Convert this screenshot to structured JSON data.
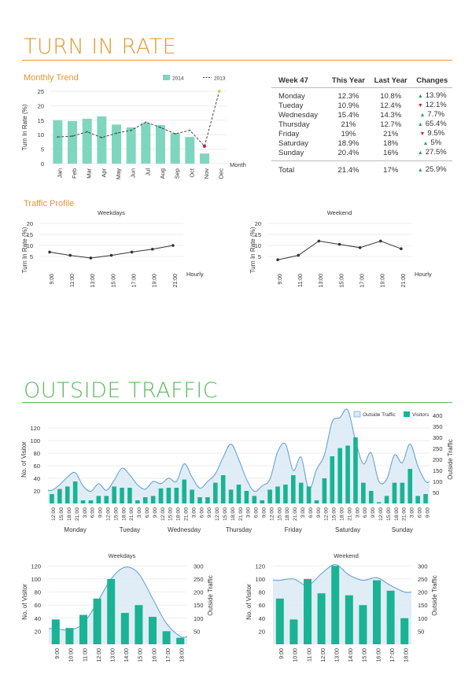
{
  "sections": {
    "turn_in_rate": "TURN IN RATE",
    "outside_traffic": "OUTSIDE TRAFFIC"
  },
  "subtitles": {
    "monthly_trend": "Monthly Trend",
    "traffic_profile": "Traffic Profile"
  },
  "colors": {
    "orange": "#e8962f",
    "green": "#5cb85c",
    "teal_bar": "#7fd6bf",
    "dark_teal": "#1ab394",
    "line_blue": "#5b9bd5",
    "area_fill": "#daeaf6",
    "up": "#2e9e5e",
    "down": "#c62828"
  },
  "table": {
    "headers": [
      "Week 47",
      "This Year",
      "Last Year",
      "Changes"
    ],
    "rows": [
      {
        "day": "Monday",
        "this": "12.3%",
        "last": "10.8%",
        "dir": "up",
        "change": "13.9%"
      },
      {
        "day": "Tueday",
        "this": "10.9%",
        "last": "12.4%",
        "dir": "down",
        "change": "12.1%"
      },
      {
        "day": "Wednesday",
        "this": "15.4%",
        "last": "14.3%",
        "dir": "up",
        "change": "7.7%"
      },
      {
        "day": "Thursday",
        "this": "21%",
        "last": "12.7%",
        "dir": "up",
        "change": "65.4%"
      },
      {
        "day": "Friday",
        "this": "19%",
        "last": "21%",
        "dir": "down",
        "change": "9.5%"
      },
      {
        "day": "Saturday",
        "this": "18.9%",
        "last": "18%",
        "dir": "up",
        "change": "5%"
      },
      {
        "day": "Sunday",
        "this": "20.4%",
        "last": "16%",
        "dir": "up",
        "change": "27.5%"
      }
    ],
    "total": {
      "day": "Total",
      "this": "21.4%",
      "last": "17%",
      "dir": "up",
      "change": "25.9%"
    }
  },
  "chart_data": [
    {
      "id": "monthly",
      "type": "bar",
      "categories": [
        "Jan",
        "Feb",
        "Mar",
        "Apr",
        "May",
        "Jun",
        "Jul",
        "Aug",
        "Sep",
        "Oct",
        "Nov",
        "Dec"
      ],
      "series": [
        {
          "name": "2014",
          "kind": "bar",
          "values": [
            15,
            14.7,
            15.5,
            16.3,
            13.5,
            12.5,
            14,
            13.3,
            10.5,
            9.2,
            3.5,
            null
          ]
        },
        {
          "name": "2013",
          "kind": "line",
          "values": [
            9.2,
            9.5,
            11,
            9,
            10.5,
            11.5,
            14.3,
            12.5,
            10.3,
            11.5,
            6,
            25
          ]
        }
      ],
      "ylim": [
        0,
        25
      ],
      "yticks": [
        0,
        5,
        10,
        15,
        20,
        25
      ],
      "ylabel": "Turn In Rate (%)",
      "xlabel": "Month"
    },
    {
      "id": "weekdays_rate",
      "type": "line",
      "title": "Weekdays",
      "categories": [
        "9:00",
        "11:00",
        "13:00",
        "15:00",
        "17:00",
        "19:00",
        "21:00"
      ],
      "values": [
        7,
        5.5,
        4.3,
        5.5,
        7,
        8.3,
        10
      ],
      "ylim": [
        0,
        20
      ],
      "yticks": [
        5,
        10,
        15,
        20
      ],
      "ylabel": "Turn In Rate (%)",
      "xlabel": "Hourly"
    },
    {
      "id": "weekend_rate",
      "type": "line",
      "title": "Weekend",
      "categories": [
        "9:00",
        "11:00",
        "13:00",
        "15:00",
        "17:00",
        "19:00",
        "21:00"
      ],
      "values": [
        3.5,
        5.5,
        12,
        10.5,
        9,
        12,
        8.5
      ],
      "ylim": [
        0,
        20
      ],
      "yticks": [
        5,
        10,
        15,
        20
      ],
      "ylabel": "Turn In Rate (%)",
      "xlabel": "Hourly"
    },
    {
      "id": "weekly_traffic",
      "type": "bar",
      "groups": [
        "Monday",
        "Tueday",
        "Wednesday",
        "Thursday",
        "Friday",
        "Saturday",
        "Sunday"
      ],
      "group_ticks": [
        "12:00",
        "15:00",
        "18:00",
        "21:00",
        "3:00",
        "6:00",
        "9:00"
      ],
      "series": [
        {
          "name": "Visitors",
          "kind": "bar",
          "axis": "left",
          "values": [
            [
              15,
              23,
              27,
              35,
              5,
              5,
              12
            ],
            [
              12,
              27,
              25,
              25,
              5,
              10,
              12
            ],
            [
              24,
              25,
              25,
              38,
              22,
              10,
              10
            ],
            [
              33,
              45,
              22,
              30,
              20,
              12,
              5
            ],
            [
              22,
              27,
              30,
              45,
              33,
              27,
              5
            ],
            [
              40,
              75,
              88,
              92,
              105,
              33,
              20
            ],
            [
              2,
              12,
              33,
              33,
              55,
              12,
              15
            ]
          ]
        },
        {
          "name": "Outside Traffic",
          "kind": "area",
          "axis": "right",
          "values": [
            [
              60,
              85,
              120,
              140,
              80,
              55,
              90
            ],
            [
              60,
              105,
              160,
              130,
              85,
              65,
              100
            ],
            [
              90,
              115,
              100,
              180,
              120,
              70,
              100
            ],
            [
              135,
              210,
              270,
              200,
              110,
              55,
              80
            ],
            [
              110,
              235,
              270,
              150,
              210,
              65,
              155
            ],
            [
              220,
              370,
              390,
              425,
              285,
              180,
              230
            ],
            [
              100,
              110,
              220,
              185,
              270,
              170,
              100
            ]
          ]
        }
      ],
      "ylim_left": [
        0,
        140
      ],
      "yticks_left": [
        20,
        40,
        60,
        80,
        100,
        120
      ],
      "ylim_right": [
        0,
        400
      ],
      "yticks_right": [
        50,
        100,
        150,
        200,
        250,
        300,
        350,
        400
      ],
      "ylabel_left": "No. of Visitor",
      "ylabel_right": "Outside Traffic"
    },
    {
      "id": "weekdays_traffic",
      "type": "bar",
      "title": "Weekdays",
      "categories": [
        "9:00",
        "10:00",
        "11:00",
        "12:00",
        "13:00",
        "14:00",
        "15:00",
        "16:00",
        "17:00",
        "18:00"
      ],
      "series": [
        {
          "name": "Visitors",
          "kind": "bar",
          "axis": "left",
          "values": [
            38,
            25,
            45,
            70,
            100,
            48,
            60,
            42,
            20,
            10
          ]
        },
        {
          "name": "Outside Traffic",
          "kind": "area",
          "axis": "right",
          "values": [
            60,
            55,
            80,
            160,
            250,
            295,
            270,
            175,
            80,
            30
          ]
        }
      ],
      "ylim_left": [
        0,
        130
      ],
      "yticks_left": [
        20,
        40,
        60,
        80,
        100,
        120
      ],
      "ylim_right": [
        0,
        325
      ],
      "yticks_right": [
        50,
        100,
        150,
        200,
        250,
        300
      ],
      "ylabel_left": "No. of Visitor",
      "ylabel_right": "Outside Traffic"
    },
    {
      "id": "weekend_traffic",
      "type": "bar",
      "title": "Weekend",
      "categories": [
        "9:00",
        "10:00",
        "11:00",
        "12:00",
        "13:00",
        "14:00",
        "15:00",
        "16:00",
        "17:00",
        "18:00"
      ],
      "series": [
        {
          "name": "Visitors",
          "kind": "bar",
          "axis": "left",
          "values": [
            70,
            38,
            100,
            78,
            120,
            75,
            60,
            98,
            82,
            40
          ]
        },
        {
          "name": "Outside Traffic",
          "kind": "area",
          "axis": "right",
          "values": [
            245,
            250,
            225,
            270,
            305,
            265,
            245,
            255,
            225,
            200
          ]
        }
      ],
      "ylim_left": [
        0,
        130
      ],
      "yticks_left": [
        20,
        40,
        60,
        80,
        100,
        120
      ],
      "ylim_right": [
        0,
        325
      ],
      "yticks_right": [
        50,
        100,
        150,
        200,
        250,
        300
      ],
      "ylabel_left": "No. of Visitor",
      "ylabel_right": "Outside Traffic"
    }
  ]
}
